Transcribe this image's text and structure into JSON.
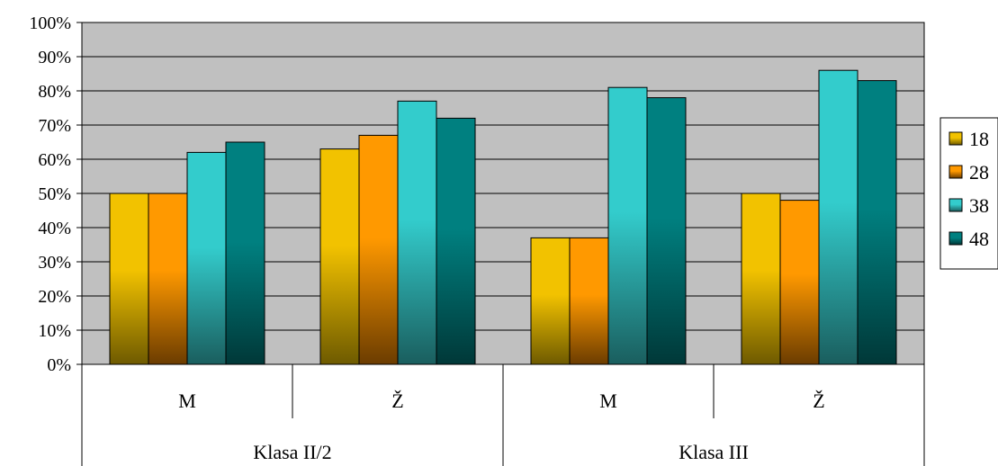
{
  "chart_data": {
    "type": "bar",
    "ylim": [
      0,
      100
    ],
    "yticks": [
      "0%",
      "10%",
      "20%",
      "30%",
      "40%",
      "50%",
      "60%",
      "70%",
      "80%",
      "90%",
      "100%"
    ],
    "categories": [
      "M",
      "Ž",
      "M",
      "Ž"
    ],
    "groups": [
      {
        "label": "Klasa II/2",
        "span": 2
      },
      {
        "label": "Klasa III",
        "span": 2
      }
    ],
    "series": [
      {
        "name": "18",
        "values": [
          50,
          63,
          37,
          50
        ],
        "color": "#f2c200",
        "color_dark": "#6e5a00"
      },
      {
        "name": "28",
        "values": [
          50,
          67,
          37,
          48
        ],
        "color": "#ff9900",
        "color_dark": "#6b3c00"
      },
      {
        "name": "38",
        "values": [
          62,
          77,
          81,
          86
        ],
        "color": "#33cccc",
        "color_dark": "#1a5e5e"
      },
      {
        "name": "48",
        "values": [
          65,
          72,
          78,
          83
        ],
        "color": "#008080",
        "color_dark": "#003838"
      }
    ],
    "legend_position": "right",
    "grid": true,
    "plot_background": "#c0c0c0"
  }
}
